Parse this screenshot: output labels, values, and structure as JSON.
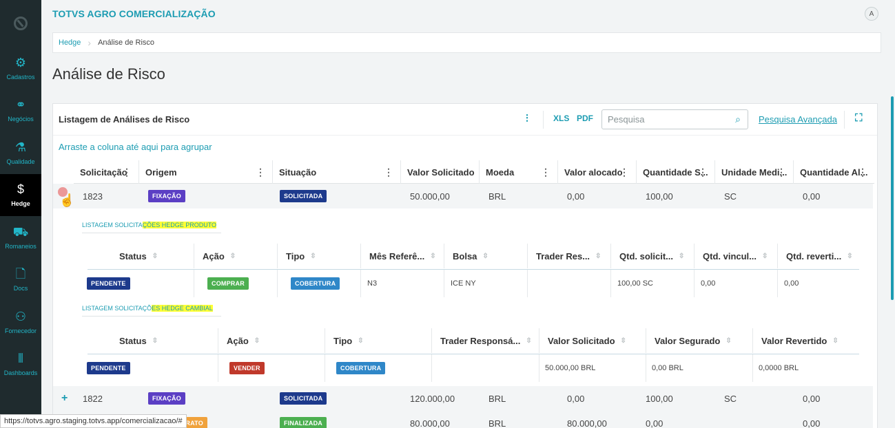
{
  "app": {
    "title": "TOTVS AGRO COMERCIALIZAÇÃO",
    "avatar": "A"
  },
  "sidebar": {
    "items": [
      {
        "label": "Cadastros",
        "icon": "gear-icon",
        "glyph": "⚙"
      },
      {
        "label": "Negócios",
        "icon": "handshake-icon",
        "glyph": "⚭"
      },
      {
        "label": "Qualidade",
        "icon": "flask-icon",
        "glyph": "⚗"
      },
      {
        "label": "Hedge",
        "icon": "dollar-icon",
        "glyph": "$",
        "active": true
      },
      {
        "label": "Romaneios",
        "icon": "truck-icon",
        "glyph": "⛟"
      },
      {
        "label": "Docs",
        "icon": "document-icon",
        "glyph": "🗋"
      },
      {
        "label": "Fornecedor",
        "icon": "users-icon",
        "glyph": "⚇"
      },
      {
        "label": "Dashboards",
        "icon": "chart-icon",
        "glyph": "⫴"
      }
    ]
  },
  "breadcrumb": {
    "parent": "Hedge",
    "current": "Análise de Risco"
  },
  "page_title": "Análise de Risco",
  "card": {
    "title": "Listagem de Análises de Risco",
    "search_placeholder": "Pesquisa",
    "advanced_search": "Pesquisa Avançada",
    "group_hint": "Arraste a coluna até aqui para agrupar"
  },
  "main_columns": [
    "Solicitação",
    "Origem",
    "Situação",
    "Valor Solicitado",
    "Moeda",
    "Valor alocado",
    "Quantidade S...",
    "Unidade Medi...",
    "Quantidade Al..."
  ],
  "main_rows": [
    {
      "id": "1823",
      "origem": "FIXAÇÃO",
      "situacao": "SOLICITADA",
      "valor_solicitado": "50.000,00",
      "moeda": "BRL",
      "valor_alocado": "0,00",
      "quantidade_s": "100,00",
      "unidade": "SC",
      "quantidade_al": "0,00"
    },
    {
      "id": "1822",
      "origem": "FIXAÇÃO",
      "situacao": "SOLICITADA",
      "valor_solicitado": "120.000,00",
      "moeda": "BRL",
      "valor_alocado": "0,00",
      "quantidade_s": "100,00",
      "unidade": "SC",
      "quantidade_al": "0,00"
    },
    {
      "id": "",
      "origem": "NTO CONTRATO",
      "situacao": "FINALIZADA",
      "valor_solicitado": "80.000,00",
      "moeda": "BRL",
      "valor_alocado": "80.000,00",
      "quantidade_s": "0,00",
      "unidade": "",
      "quantidade_al": "0,00"
    }
  ],
  "produto": {
    "title_prefix": "LISTAGEM SOLICITA",
    "title_highlight": "ÇÕES HEDGE PRODUTO",
    "columns": [
      "Status",
      "Ação",
      "Tipo",
      "Mês Referê...",
      "Bolsa",
      "Trader Res...",
      "Qtd. solicit...",
      "Qtd. vincul...",
      "Qtd. reverti..."
    ],
    "row": {
      "status": "PENDENTE",
      "acao": "COMPRAR",
      "tipo": "COBERTURA",
      "mes": "N3",
      "bolsa": "ICE NY",
      "trader": "",
      "qtd_solicit": "100,00 SC",
      "qtd_vincul": "0,00",
      "qtd_reverti": "0,00"
    }
  },
  "cambial": {
    "title_prefix": "LISTAGEM SOLICITAÇÕ",
    "title_highlight": "ES HEDGE CAMBIAL",
    "columns": [
      "Status",
      "Ação",
      "Tipo",
      "Trader Responsá...",
      "Valor Solicitado",
      "Valor Segurado",
      "Valor Revertido"
    ],
    "row": {
      "status": "PENDENTE",
      "acao": "VENDER",
      "tipo": "COBERTURA",
      "trader": "",
      "valor_solicitado": "50.000,00 BRL",
      "valor_segurado": "0,00 BRL",
      "valor_revertido": "0,0000 BRL"
    }
  },
  "status_url": "https://totvs.agro.staging.totvs.app/comercializacao/#"
}
